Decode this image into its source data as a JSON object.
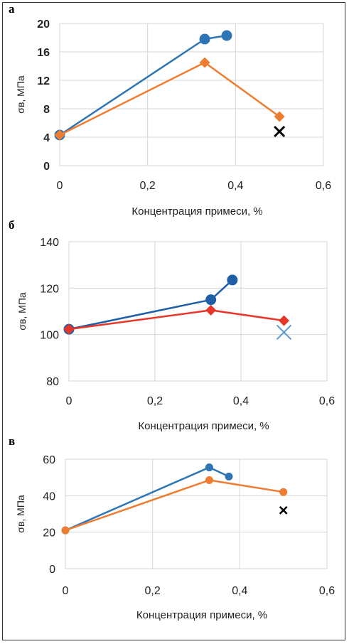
{
  "chart_data": [
    {
      "type": "line",
      "panel": "а",
      "xlabel": "Концентрация примеси, %",
      "ylabel": "σв, МПа",
      "xlim": [
        0,
        0.6
      ],
      "ylim": [
        0,
        20
      ],
      "x_ticks": [
        "0",
        "0,2",
        "0,4",
        "0,6"
      ],
      "y_ticks": [
        "0",
        "4",
        "8",
        "12",
        "16",
        "20"
      ],
      "grid": true,
      "series": [
        {
          "color": "#2E75B6",
          "marker": "circle",
          "points": [
            [
              0,
              4.3
            ],
            [
              0.33,
              17.8
            ],
            [
              0.38,
              18.3
            ]
          ]
        },
        {
          "color": "#ED7D31",
          "marker": "diamond",
          "points": [
            [
              0,
              4.3
            ],
            [
              0.33,
              14.5
            ],
            [
              0.5,
              6.9
            ]
          ]
        },
        {
          "color": "#000000",
          "marker": "x",
          "points": [
            [
              0.5,
              4.8
            ]
          ]
        }
      ]
    },
    {
      "type": "line",
      "panel": "б",
      "xlabel": "Концентрация примеси, %",
      "ylabel": "σв, МПа",
      "xlim": [
        0,
        0.6
      ],
      "ylim": [
        80,
        140
      ],
      "x_ticks": [
        "0",
        "0,2",
        "0,4",
        "0,6"
      ],
      "y_ticks": [
        "80",
        "100",
        "120",
        "140"
      ],
      "grid": true,
      "series": [
        {
          "color": "#1F5FA8",
          "marker": "circle",
          "points": [
            [
              0,
              102.3
            ],
            [
              0.33,
              115
            ],
            [
              0.38,
              123.5
            ]
          ]
        },
        {
          "color": "#E8352A",
          "marker": "diamond",
          "points": [
            [
              0,
              102.3
            ],
            [
              0.33,
              110.5
            ],
            [
              0.5,
              106
            ]
          ]
        },
        {
          "color": "#5B9BD5",
          "marker": "x",
          "points": [
            [
              0.5,
              101
            ]
          ]
        }
      ]
    },
    {
      "type": "line",
      "panel": "в",
      "xlabel": "Концентрация примеси, %",
      "ylabel": "σв, МПа",
      "xlim": [
        0,
        0.6
      ],
      "ylim": [
        0,
        60
      ],
      "x_ticks": [
        "0",
        "0,2",
        "0,4",
        "0,6"
      ],
      "y_ticks": [
        "0",
        "20",
        "40",
        "60"
      ],
      "grid": true,
      "series": [
        {
          "color": "#2E75B6",
          "marker": "circle",
          "points": [
            [
              0,
              21
            ],
            [
              0.33,
              55.5
            ],
            [
              0.375,
              50.5
            ]
          ]
        },
        {
          "color": "#ED7D31",
          "marker": "circle",
          "points": [
            [
              0,
              21
            ],
            [
              0.33,
              48.5
            ],
            [
              0.5,
              42
            ]
          ]
        },
        {
          "color": "#000000",
          "marker": "x",
          "points": [
            [
              0.5,
              32
            ]
          ]
        }
      ]
    }
  ]
}
